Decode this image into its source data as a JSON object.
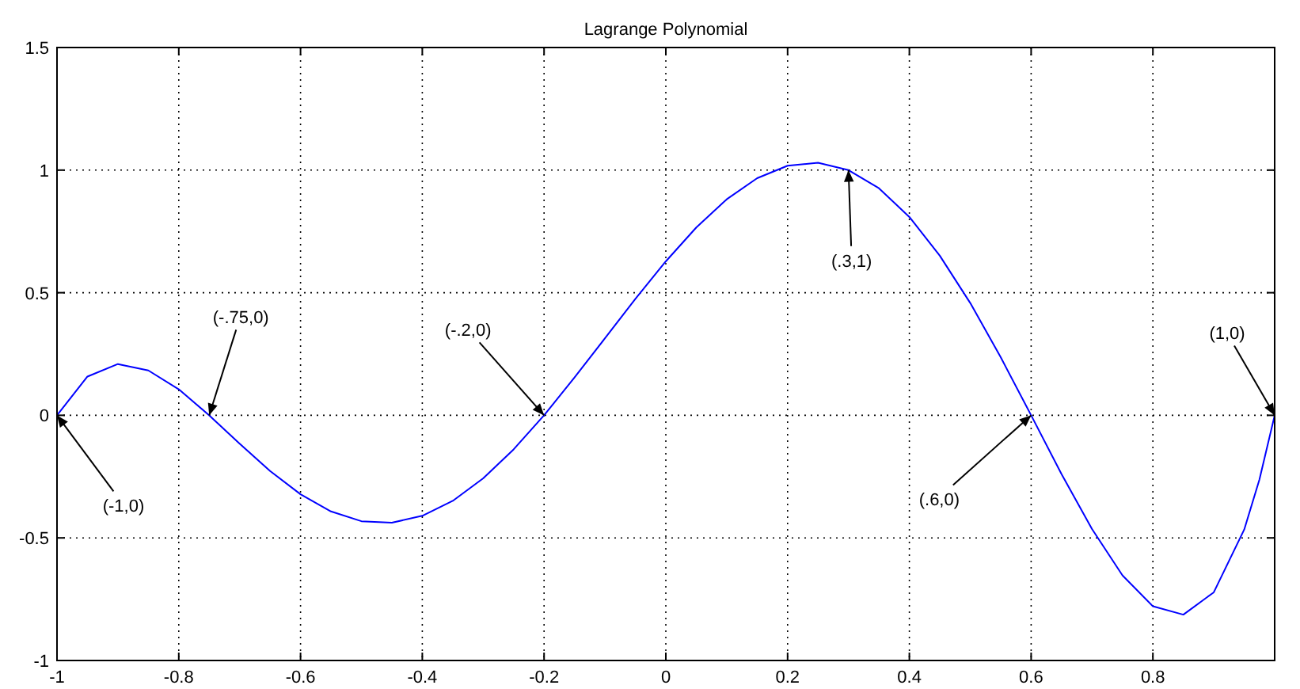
{
  "chart_data": {
    "type": "line",
    "title": "Lagrange Polynomial",
    "x": [
      -1,
      -0.95,
      -0.9,
      -0.85,
      -0.8,
      -0.75,
      -0.7,
      -0.65,
      -0.6,
      -0.55,
      -0.5,
      -0.45,
      -0.4,
      -0.35,
      -0.3,
      -0.25,
      -0.2,
      -0.15,
      -0.1,
      -0.05,
      0,
      0.05,
      0.1,
      0.15,
      0.2,
      0.25,
      0.3,
      0.35,
      0.4,
      0.45,
      0.5,
      0.55,
      0.6,
      0.65,
      0.7,
      0.75,
      0.8,
      0.85,
      0.9,
      0.95,
      0.975,
      1
    ],
    "series": [
      {
        "color": "#0000ff",
        "values": [
          0,
          0.158,
          0.209,
          0.183,
          0.106,
          0,
          -0.116,
          -0.227,
          -0.322,
          -0.392,
          -0.432,
          -0.438,
          -0.41,
          -0.349,
          -0.257,
          -0.139,
          0,
          0.154,
          0.314,
          0.475,
          0.628,
          0.766,
          0.881,
          0.967,
          1.018,
          1.03,
          1,
          0.926,
          0.809,
          0.651,
          0.458,
          0.237,
          0,
          -0.24,
          -0.464,
          -0.653,
          -0.779,
          -0.813,
          -0.722,
          -0.466,
          -0.262,
          0
        ]
      }
    ],
    "xlim": [
      -1,
      1
    ],
    "ylim": [
      -1,
      1.5
    ],
    "xticks": [
      -1,
      -0.8,
      -0.6,
      -0.4,
      -0.2,
      0,
      0.2,
      0.4,
      0.6,
      0.8
    ],
    "yticks": [
      -1,
      -0.5,
      0,
      0.5,
      1,
      1.5
    ],
    "grid": true,
    "line_style": "solid",
    "marker": "none",
    "annotations": [
      {
        "text": "(-1,0)",
        "x": -1,
        "y": 0
      },
      {
        "text": "(-.75,0)",
        "x": -0.75,
        "y": 0
      },
      {
        "text": "(-.2,0)",
        "x": -0.2,
        "y": 0
      },
      {
        "text": "(.3,1)",
        "x": 0.3,
        "y": 1
      },
      {
        "text": "(.6,0)",
        "x": 0.6,
        "y": 0
      },
      {
        "text": "(1,0)",
        "x": 1,
        "y": 0
      }
    ]
  }
}
